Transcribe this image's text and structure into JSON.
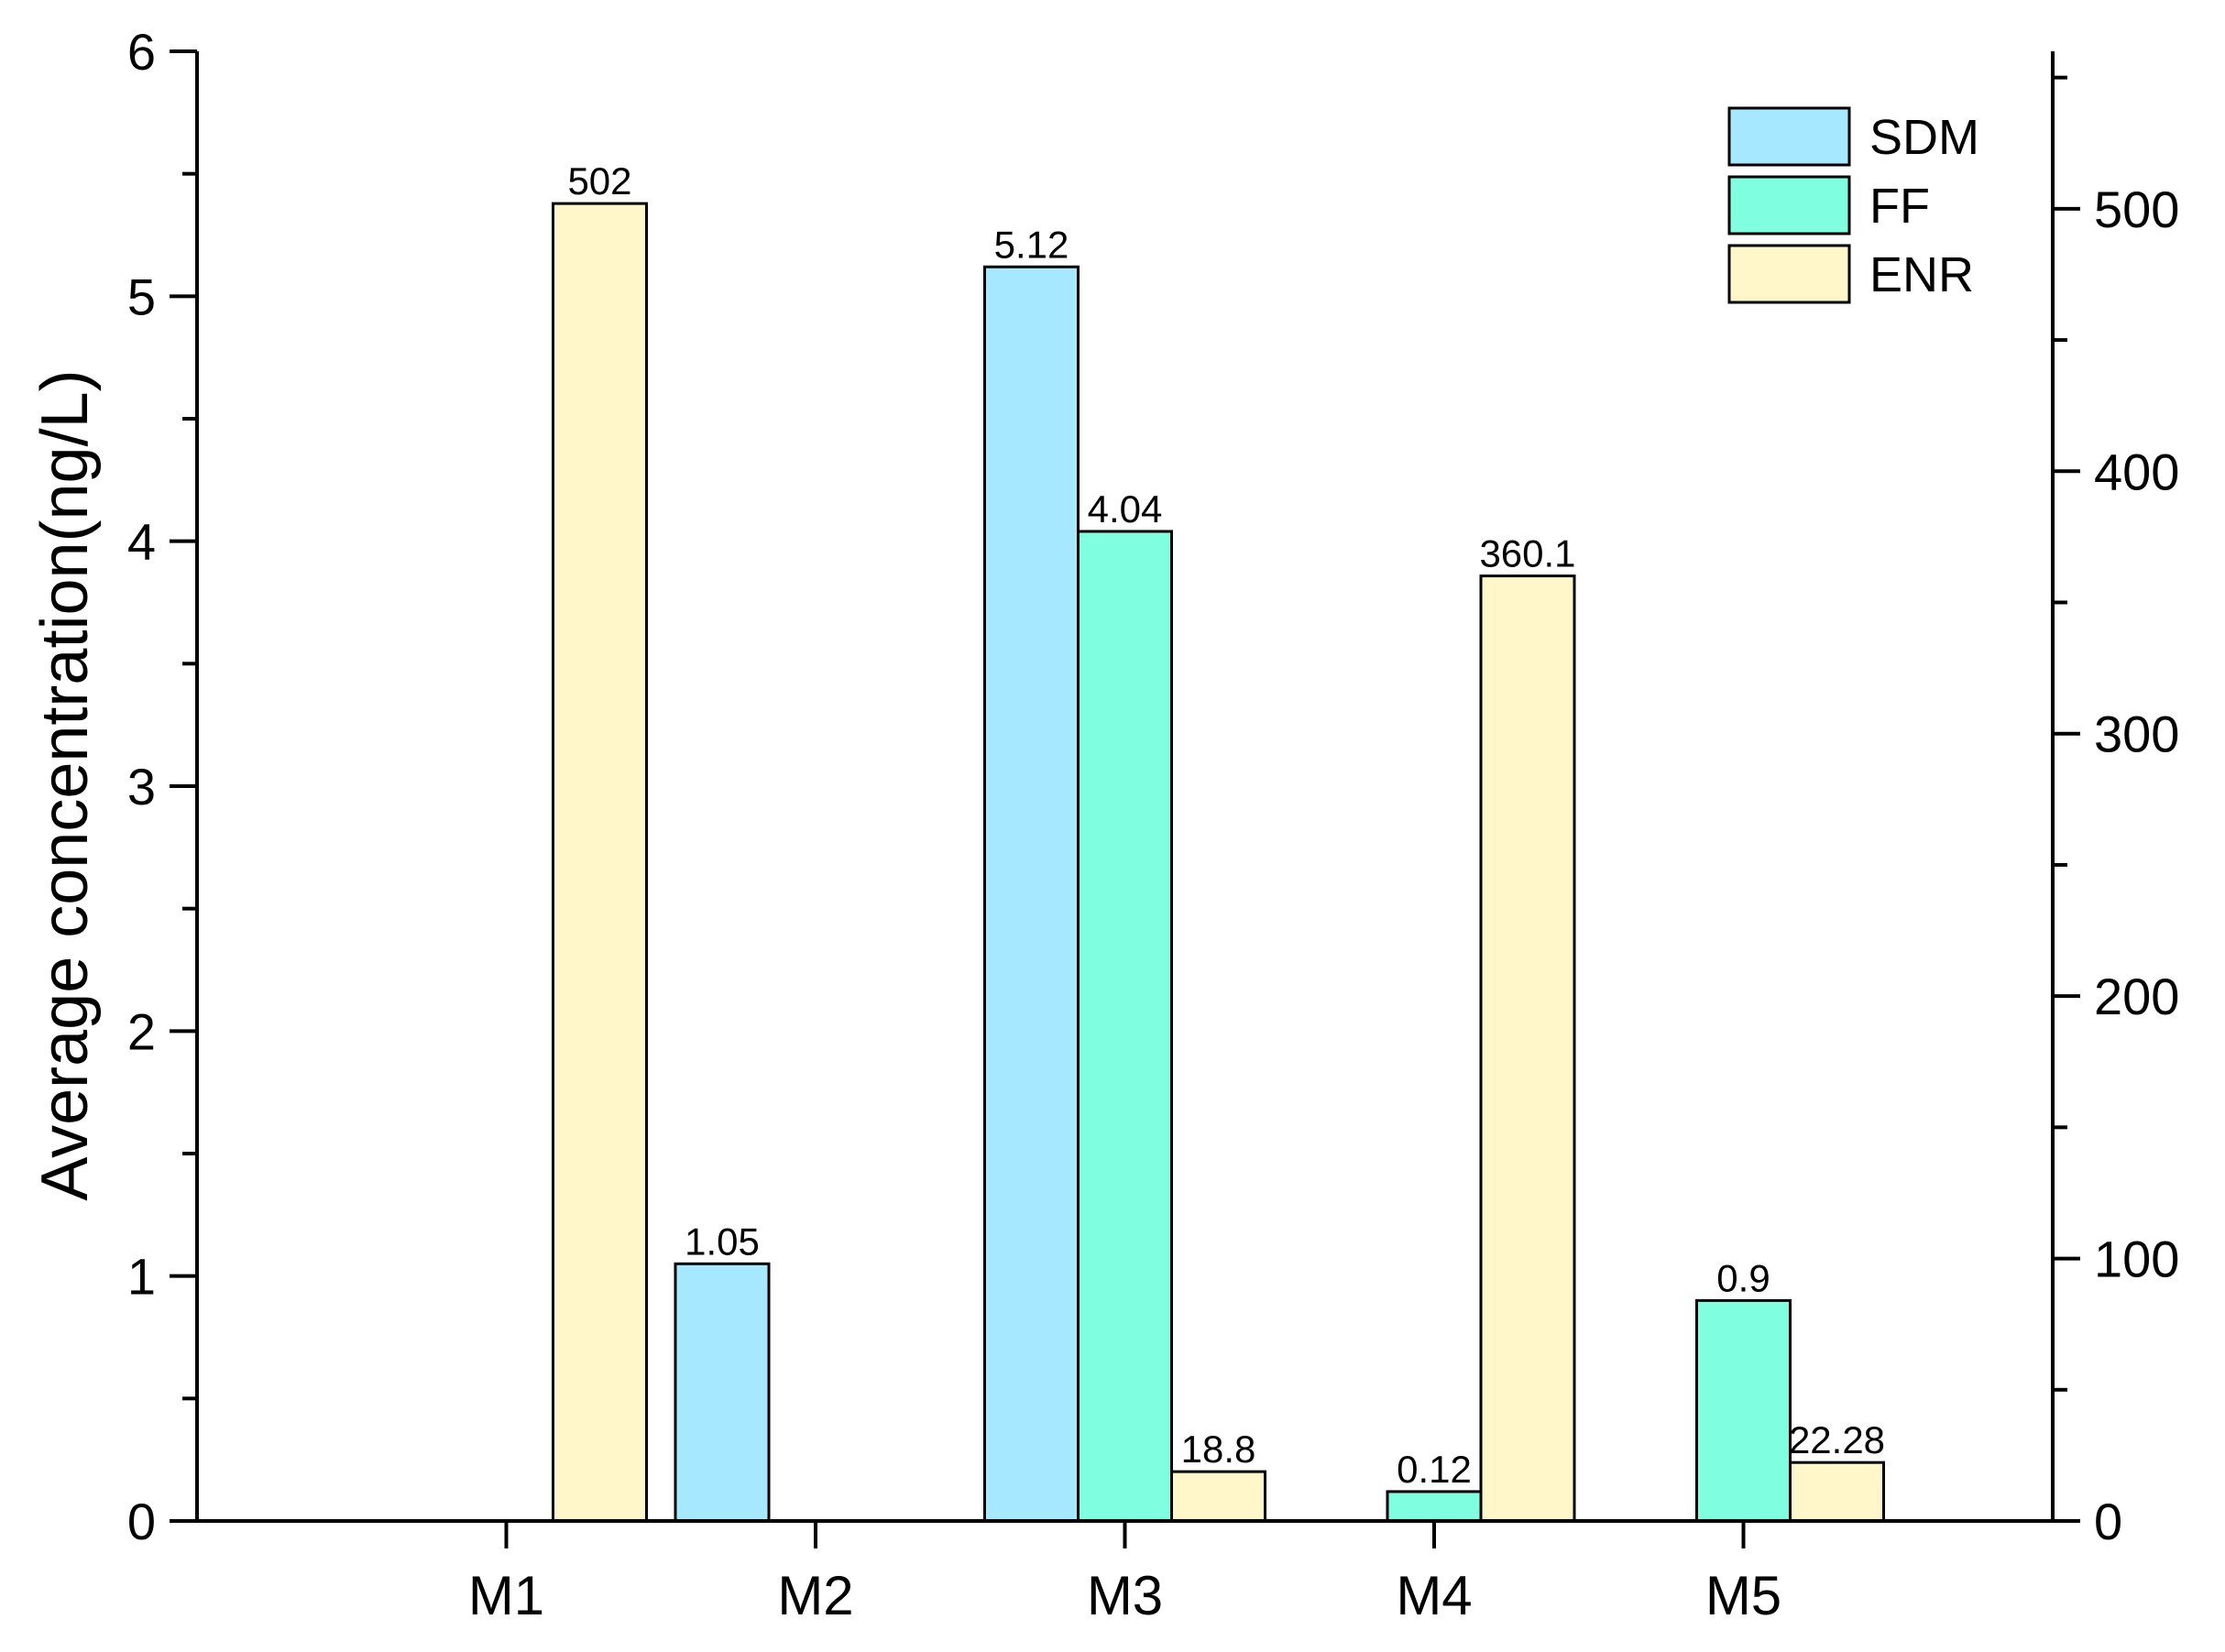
{
  "chart_data": {
    "type": "bar",
    "categories": [
      "M1",
      "M2",
      "M3",
      "M4",
      "M5"
    ],
    "ylabel": "Average concentration(ng/L)",
    "y_left": {
      "min": 0,
      "max": 6,
      "major": [
        0,
        1,
        2,
        3,
        4,
        5,
        6
      ],
      "minor_step": 0.5
    },
    "y_right": {
      "min": 0,
      "max": 560,
      "major": [
        0,
        100,
        200,
        300,
        400,
        500
      ],
      "minor_step": 50
    },
    "series": [
      {
        "name": "SDM",
        "color": "#A6E8FF",
        "axis": "left",
        "values": [
          null,
          1.05,
          5.12,
          null,
          null
        ],
        "labels": [
          "",
          "1.05",
          "5.12",
          "",
          ""
        ]
      },
      {
        "name": "FF",
        "color": "#7FFFE0",
        "axis": "left",
        "values": [
          null,
          null,
          4.04,
          0.12,
          0.9
        ],
        "labels": [
          "",
          "",
          "4.04",
          "0.12",
          "0.9"
        ]
      },
      {
        "name": "ENR",
        "color": "#FFF6C9",
        "axis": "right",
        "values": [
          502,
          null,
          18.8,
          360.1,
          22.28
        ],
        "labels": [
          "502",
          "",
          "18.8",
          "360.1",
          "22.28"
        ]
      }
    ],
    "legend": {
      "position": "top-right",
      "entries": [
        "SDM",
        "FF",
        "ENR"
      ]
    },
    "grid": false
  }
}
